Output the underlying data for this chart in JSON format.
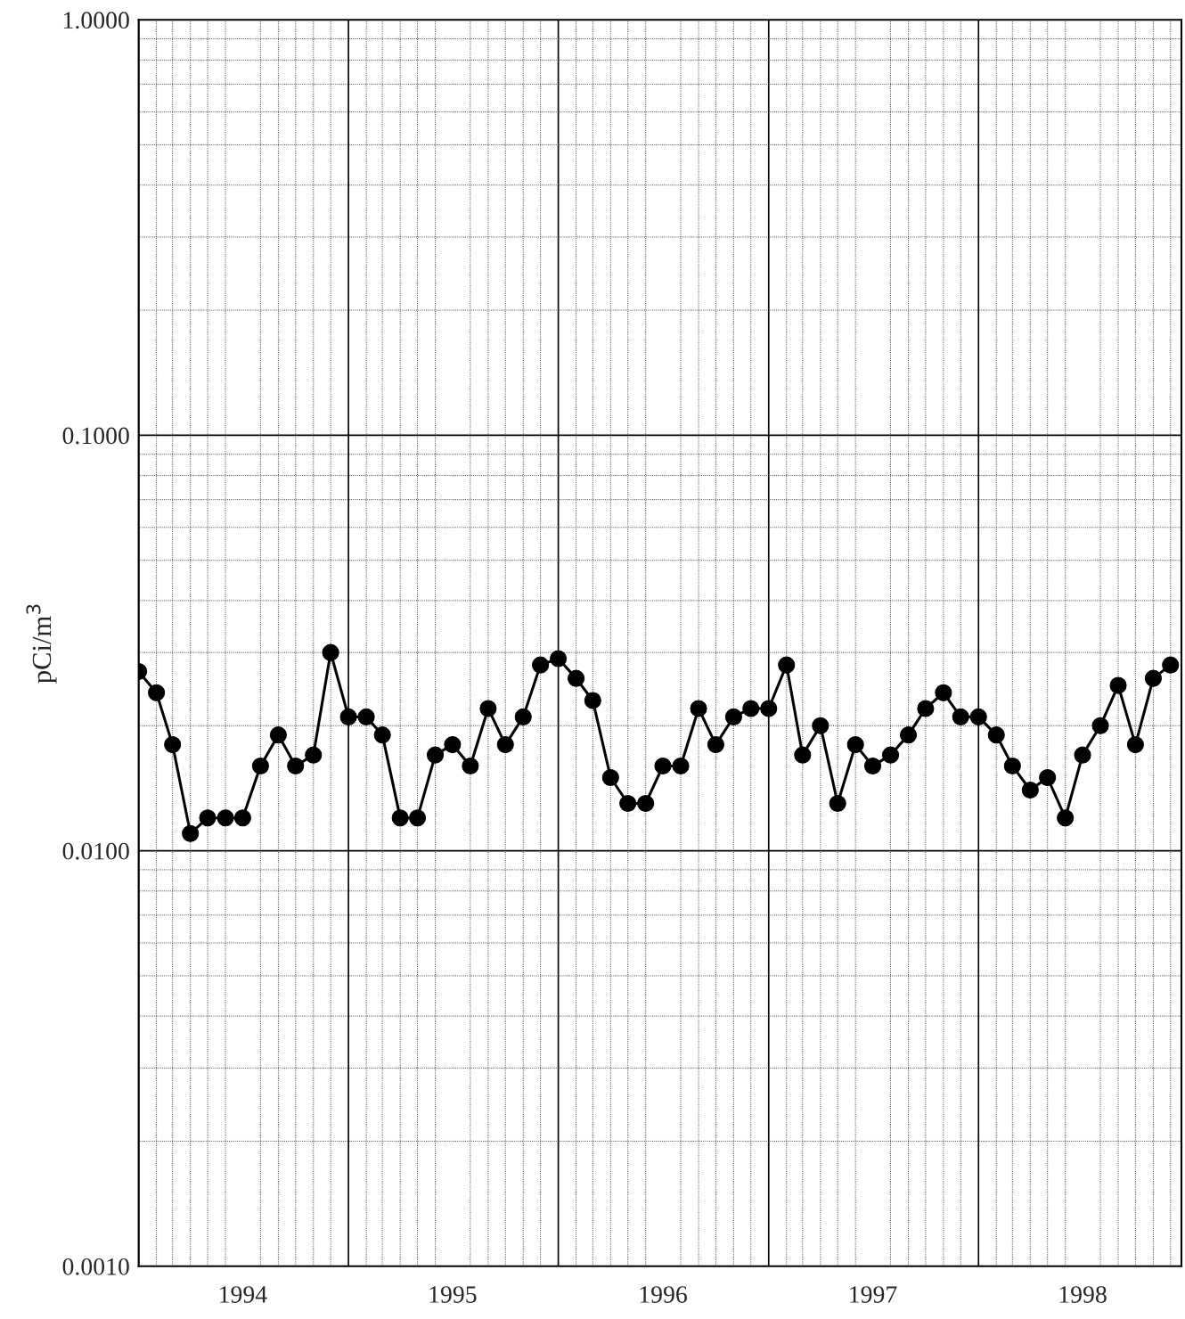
{
  "chart_data": {
    "type": "line",
    "ylabel": "pCi/m$^{3}$",
    "log": "y",
    "grid": true,
    "marker": "circle",
    "line_style": "solid",
    "x": [
      "1994-01",
      "1994-02",
      "1994-03",
      "1994-04",
      "1994-05",
      "1994-06",
      "1994-07",
      "1994-08",
      "1994-09",
      "1994-10",
      "1994-11",
      "1994-12",
      "1995-01",
      "1995-02",
      "1995-03",
      "1995-04",
      "1995-05",
      "1995-06",
      "1995-07",
      "1995-08",
      "1995-09",
      "1995-10",
      "1995-11",
      "1995-12",
      "1996-01",
      "1996-02",
      "1996-03",
      "1996-04",
      "1996-05",
      "1996-06",
      "1996-07",
      "1996-08",
      "1996-09",
      "1996-10",
      "1996-11",
      "1996-12",
      "1997-01",
      "1997-02",
      "1997-03",
      "1997-04",
      "1997-05",
      "1997-06",
      "1997-07",
      "1997-08",
      "1997-09",
      "1997-10",
      "1997-11",
      "1997-12",
      "1998-01",
      "1998-02",
      "1998-03",
      "1998-04",
      "1998-05",
      "1998-06",
      "1998-07",
      "1998-08",
      "1998-09",
      "1998-10",
      "1998-11",
      "1998-12"
    ],
    "series": [
      {
        "color": "#000000",
        "values": [
          0.027,
          0.024,
          0.018,
          0.011,
          0.012,
          0.012,
          0.012,
          0.016,
          0.019,
          0.016,
          0.017,
          0.03,
          0.021,
          0.021,
          0.019,
          0.012,
          0.012,
          0.017,
          0.018,
          0.016,
          0.022,
          0.018,
          0.021,
          0.028,
          0.029,
          0.026,
          0.023,
          0.015,
          0.013,
          0.013,
          0.016,
          0.016,
          0.022,
          0.018,
          0.021,
          0.022,
          0.022,
          0.028,
          0.017,
          0.02,
          0.013,
          0.018,
          0.016,
          0.017,
          0.019,
          0.022,
          0.024,
          0.021,
          0.021,
          0.019,
          0.016,
          0.014,
          0.015,
          0.012,
          0.017,
          0.02,
          0.025,
          0.018,
          0.026,
          0.028
        ]
      }
    ],
    "xlim": [
      "1994-01",
      "1998-12-20"
    ],
    "xticks": [
      {
        "value": "1994-01",
        "label": null
      },
      {
        "value": "1994-07",
        "label": "1994"
      },
      {
        "value": "1995-01",
        "label": null
      },
      {
        "value": "1995-07",
        "label": "1995"
      },
      {
        "value": "1996-01",
        "label": null
      },
      {
        "value": "1996-07",
        "label": "1996"
      },
      {
        "value": "1997-01",
        "label": null
      },
      {
        "value": "1997-07",
        "label": "1997"
      },
      {
        "value": "1998-01",
        "label": null
      },
      {
        "value": "1998-07",
        "label": "1998"
      }
    ],
    "ylim": [
      0.001,
      1
    ],
    "yticks": [
      {
        "value": 0.001,
        "label": "0.0010"
      },
      {
        "value": 0.01,
        "label": "0.0100"
      },
      {
        "value": 0.1,
        "label": "0.1000"
      },
      {
        "value": 1,
        "label": "1.0000"
      }
    ]
  }
}
